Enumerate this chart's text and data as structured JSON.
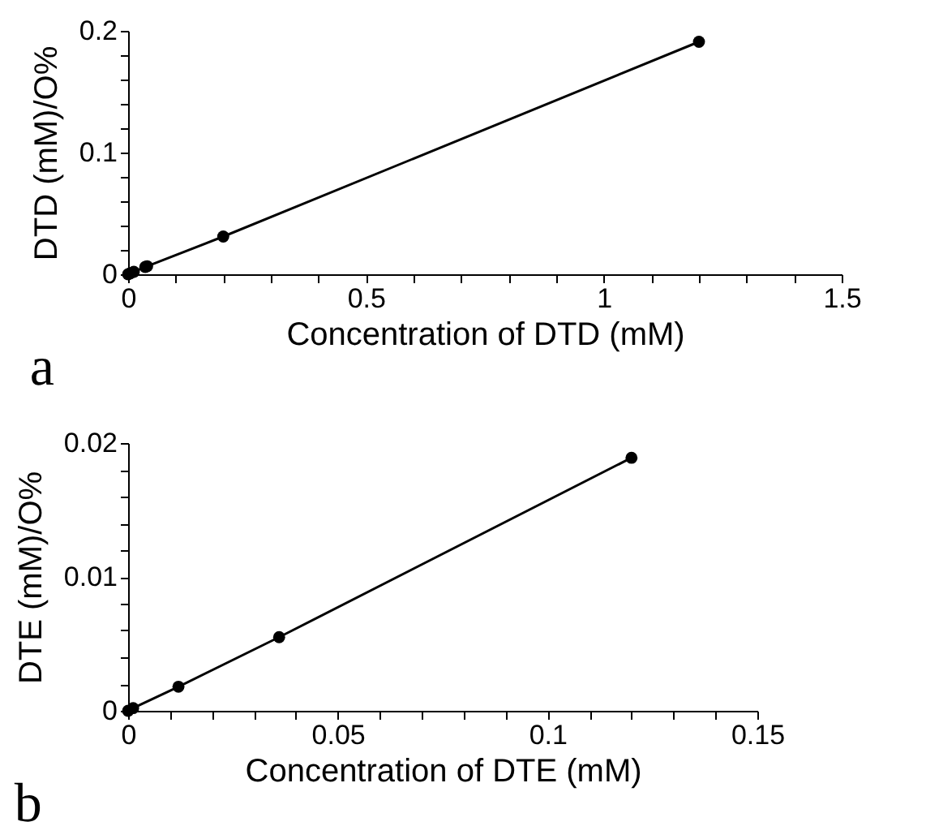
{
  "chart_data": [
    {
      "type": "line",
      "title": "a",
      "xlabel": "Concentration of DTD (mM)",
      "ylabel": "DTD (mM)/O%",
      "x": [
        0,
        0.004,
        0.012,
        0.036,
        0.04,
        0.2,
        1.2
      ],
      "series": [
        {
          "color": "#000000",
          "values": [
            0,
            0.0007,
            0.002,
            0.006,
            0.0066,
            0.031,
            0.191
          ]
        }
      ],
      "xlim": [
        0,
        1.5
      ],
      "ylim": [
        0,
        0.2
      ],
      "xticks": [
        0,
        {
          "value": 0.1,
          "label": null
        },
        {
          "value": 0.2,
          "label": null
        },
        {
          "value": 0.3,
          "label": null
        },
        {
          "value": 0.4,
          "label": null
        },
        0.5,
        {
          "value": 0.6,
          "label": null
        },
        {
          "value": 0.7,
          "label": null
        },
        {
          "value": 0.8,
          "label": null
        },
        {
          "value": 0.9,
          "label": null
        },
        1,
        {
          "value": 1.1,
          "label": null
        },
        {
          "value": 1.2,
          "label": null
        },
        {
          "value": 1.3,
          "label": null
        },
        {
          "value": 1.4,
          "label": null
        },
        1.5
      ],
      "yticks": [
        0,
        {
          "value": 0.02,
          "label": null
        },
        {
          "value": 0.04,
          "label": null
        },
        {
          "value": 0.06,
          "label": null
        },
        {
          "value": 0.08,
          "label": null
        },
        0.1,
        {
          "value": 0.12,
          "label": null
        },
        {
          "value": 0.14,
          "label": null
        },
        {
          "value": 0.16,
          "label": null
        },
        {
          "value": 0.18,
          "label": null
        },
        0.2
      ],
      "grid": false,
      "legend": false,
      "marker": "circle",
      "line_style": "solid"
    },
    {
      "type": "line",
      "title": "b",
      "xlabel": "Concentration of DTE (mM)",
      "ylabel": "DTE (mM)/O%",
      "x": [
        0,
        0.0012,
        0.012,
        0.036,
        0.12
      ],
      "series": [
        {
          "color": "#000000",
          "values": [
            0,
            0.0002,
            0.0018,
            0.0055,
            0.0189
          ]
        }
      ],
      "xlim": [
        0,
        0.15
      ],
      "ylim": [
        0,
        0.02
      ],
      "xticks": [
        0,
        {
          "value": 0.01,
          "label": null
        },
        {
          "value": 0.02,
          "label": null
        },
        {
          "value": 0.03,
          "label": null
        },
        {
          "value": 0.04,
          "label": null
        },
        0.05,
        {
          "value": 0.06,
          "label": null
        },
        {
          "value": 0.07,
          "label": null
        },
        {
          "value": 0.08,
          "label": null
        },
        {
          "value": 0.09,
          "label": null
        },
        0.1,
        {
          "value": 0.11,
          "label": null
        },
        {
          "value": 0.12,
          "label": null
        },
        {
          "value": 0.13,
          "label": null
        },
        {
          "value": 0.14,
          "label": null
        },
        0.15
      ],
      "yticks": [
        0,
        {
          "value": 0.002,
          "label": null
        },
        {
          "value": 0.004,
          "label": null
        },
        {
          "value": 0.006,
          "label": null
        },
        {
          "value": 0.008,
          "label": null
        },
        0.01,
        {
          "value": 0.012,
          "label": null
        },
        {
          "value": 0.014,
          "label": null
        },
        {
          "value": 0.016,
          "label": null
        },
        {
          "value": 0.018,
          "label": null
        },
        0.02
      ],
      "grid": false,
      "legend": false,
      "marker": "circle",
      "line_style": "solid"
    }
  ]
}
